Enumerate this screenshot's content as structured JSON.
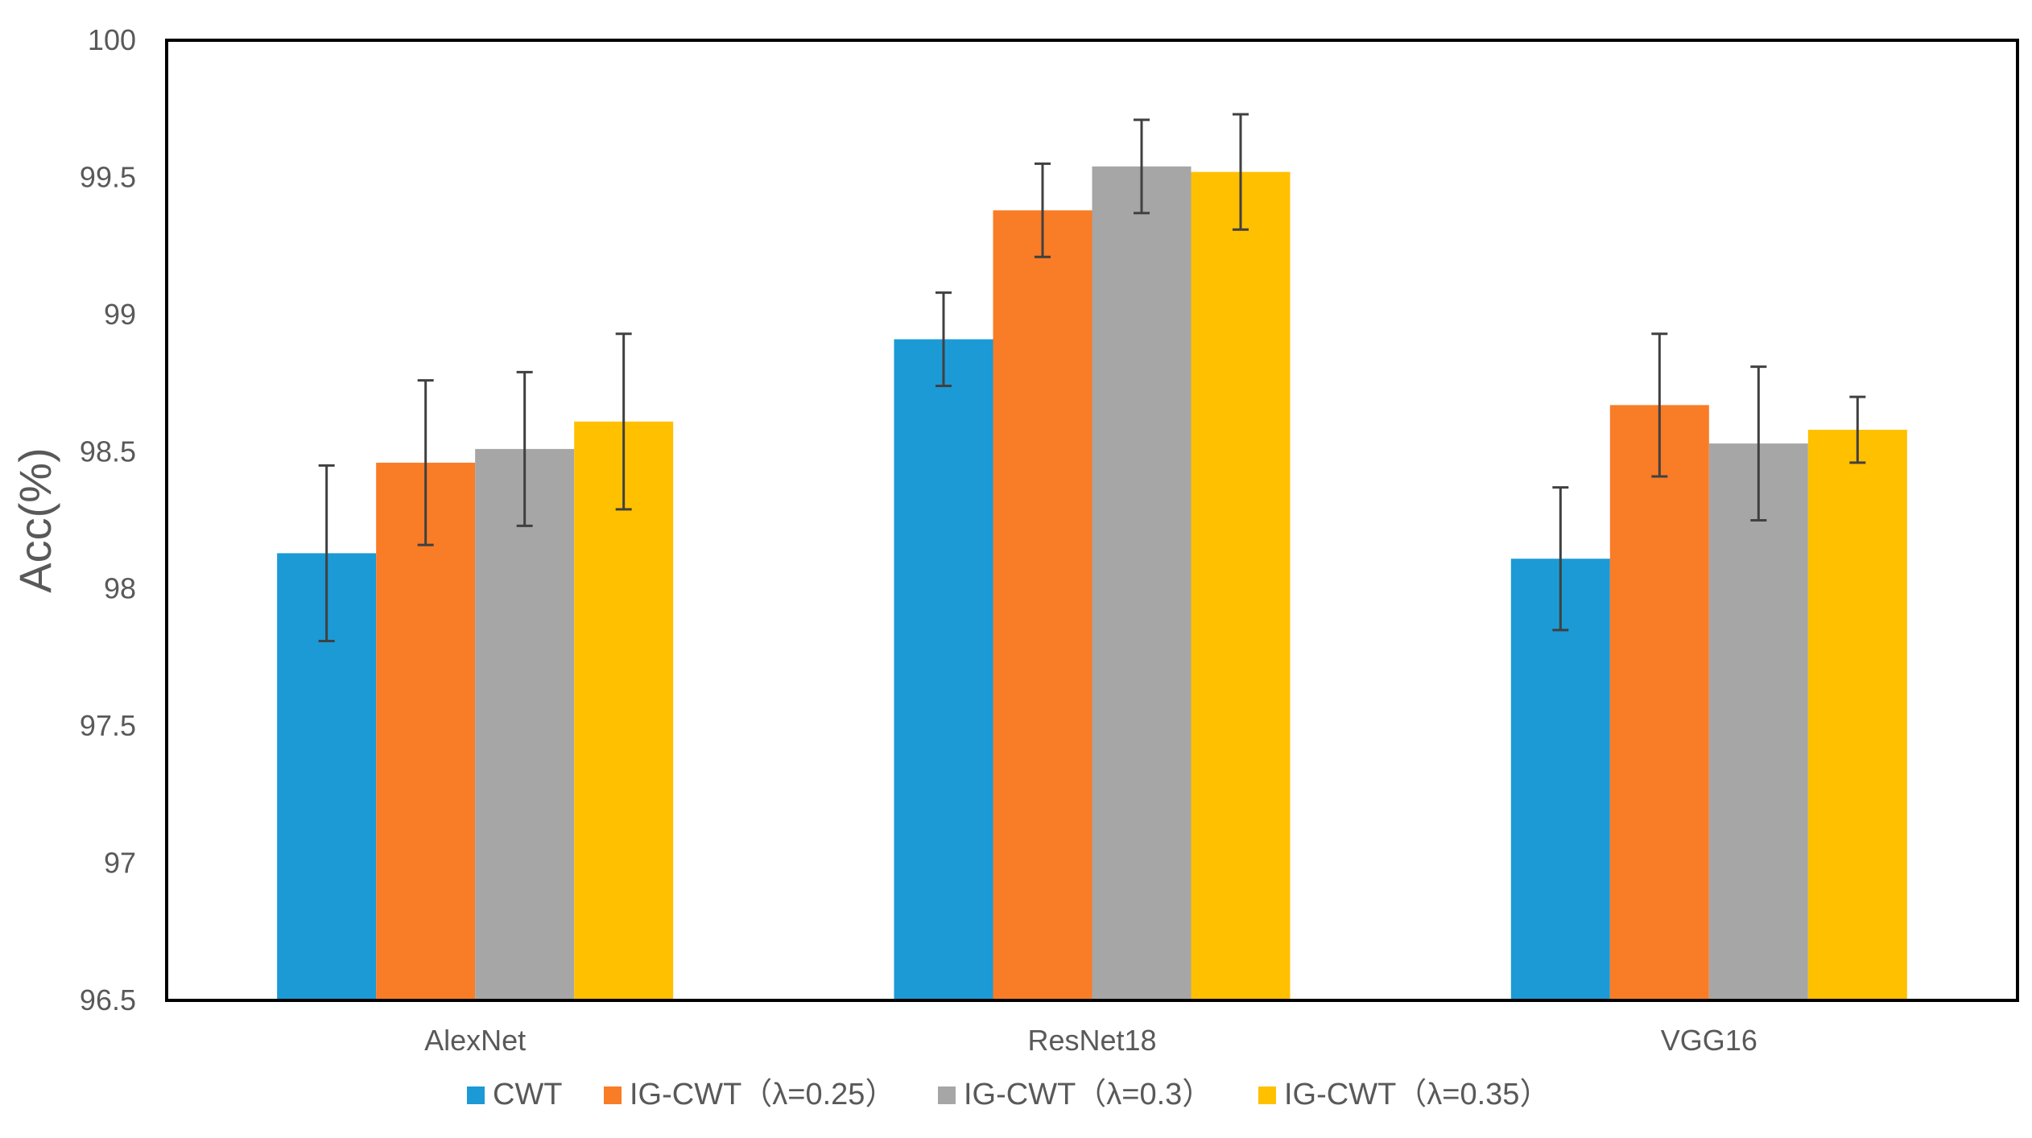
{
  "chart_data": {
    "type": "bar",
    "title": "",
    "xlabel": "",
    "ylabel": "Acc(%)",
    "ylim": [
      96.5,
      100
    ],
    "yticks": [
      96.5,
      97,
      97.5,
      98,
      98.5,
      99,
      99.5,
      100
    ],
    "ytick_labels": [
      "96.5",
      "97",
      "97.5",
      "98",
      "98.5",
      "99",
      "99.5",
      "100"
    ],
    "grid": false,
    "legend_position": "bottom",
    "categories": [
      "AlexNet",
      "ResNet18",
      "VGG16"
    ],
    "series": [
      {
        "name": "CWT",
        "color": "#1B9AD6",
        "values": [
          98.13,
          98.91,
          98.11
        ],
        "errors": [
          0.32,
          0.17,
          0.26
        ]
      },
      {
        "name": "IG-CWT（λ=0.25）",
        "color": "#F97C27",
        "values": [
          98.46,
          99.38,
          98.67
        ],
        "errors": [
          0.3,
          0.17,
          0.26
        ]
      },
      {
        "name": "IG-CWT（λ=0.3）",
        "color": "#A6A6A6",
        "values": [
          98.51,
          99.54,
          98.53
        ],
        "errors": [
          0.28,
          0.17,
          0.28
        ]
      },
      {
        "name": "IG-CWT（λ=0.35）",
        "color": "#FFC000",
        "values": [
          98.61,
          99.52,
          98.58
        ],
        "errors": [
          0.32,
          0.21,
          0.12
        ]
      }
    ]
  }
}
